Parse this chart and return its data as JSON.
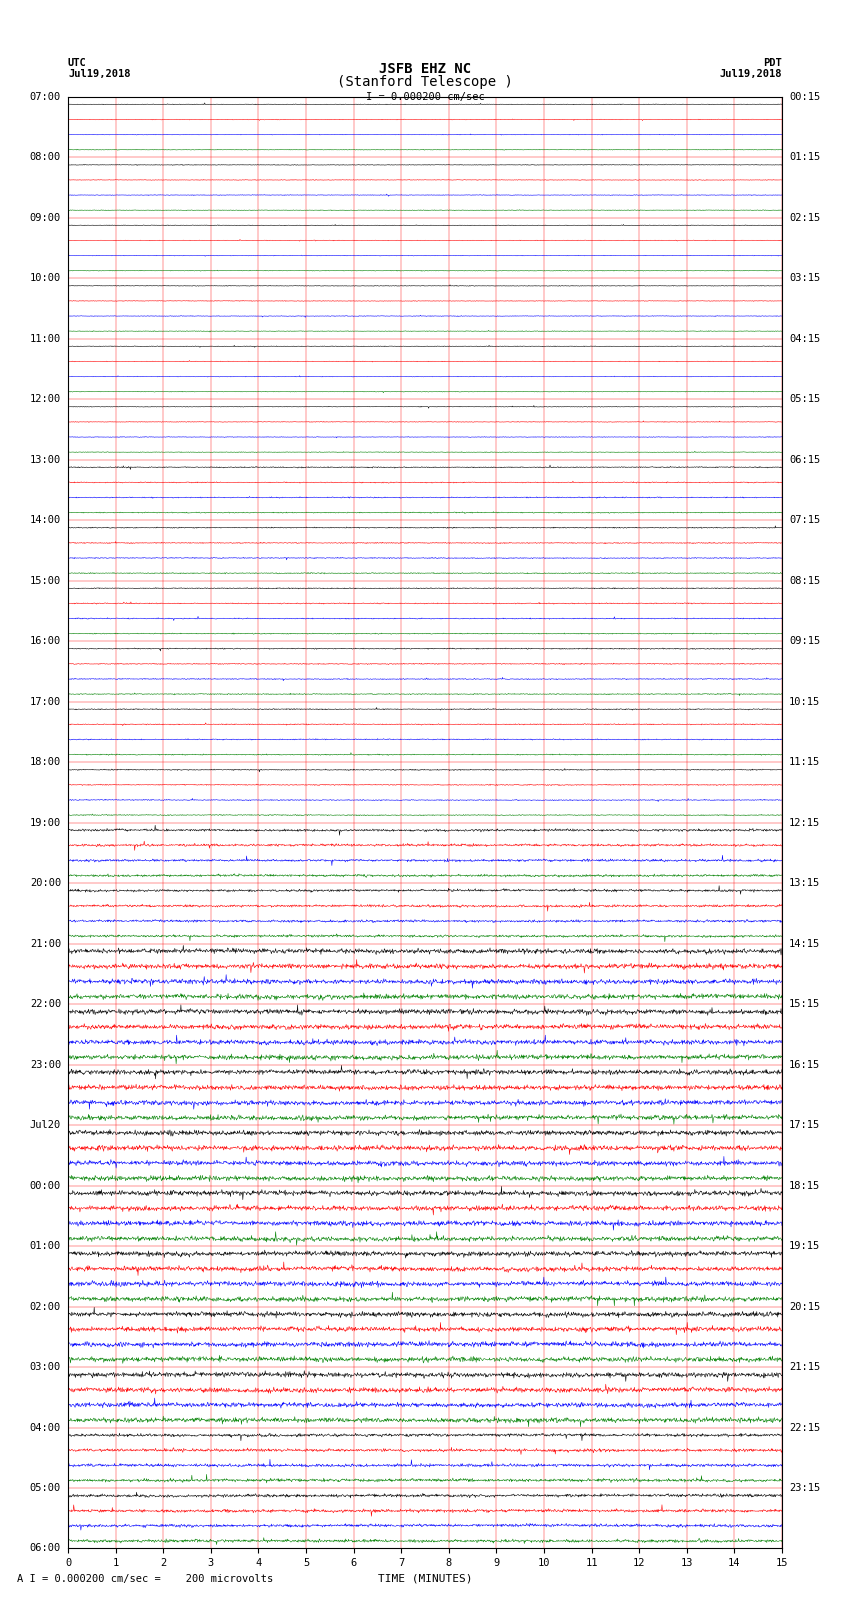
{
  "title_line1": "JSFB EHZ NC",
  "title_line2": "(Stanford Telescope )",
  "scale_text": "I = 0.000200 cm/sec",
  "scale_text2": "A I = 0.000200 cm/sec =    200 microvolts",
  "utc_label": "UTC",
  "utc_date": "Jul19,2018",
  "pdt_label": "PDT",
  "pdt_date": "Jul19,2018",
  "xlabel": "TIME (MINUTES)",
  "left_times": [
    "07:00",
    "08:00",
    "09:00",
    "10:00",
    "11:00",
    "12:00",
    "13:00",
    "14:00",
    "15:00",
    "16:00",
    "17:00",
    "18:00",
    "19:00",
    "20:00",
    "21:00",
    "22:00",
    "23:00",
    "Jul20",
    "00:00",
    "01:00",
    "02:00",
    "03:00",
    "04:00",
    "05:00",
    "06:00"
  ],
  "right_times": [
    "00:15",
    "01:15",
    "02:15",
    "03:15",
    "04:15",
    "05:15",
    "06:15",
    "07:15",
    "08:15",
    "09:15",
    "10:15",
    "11:15",
    "12:15",
    "13:15",
    "14:15",
    "15:15",
    "16:15",
    "17:15",
    "18:15",
    "19:15",
    "20:15",
    "21:15",
    "22:15",
    "23:15"
  ],
  "track_colors": [
    "black",
    "red",
    "blue",
    "green"
  ],
  "n_hours": 24,
  "tracks_per_hour": 4,
  "xlim": [
    0,
    15
  ],
  "xticks": [
    0,
    1,
    2,
    3,
    4,
    5,
    6,
    7,
    8,
    9,
    10,
    11,
    12,
    13,
    14,
    15
  ],
  "background_color": "white",
  "grid_color": "red",
  "title_fontsize": 10,
  "tick_fontsize": 7.5,
  "label_fontsize": 8
}
